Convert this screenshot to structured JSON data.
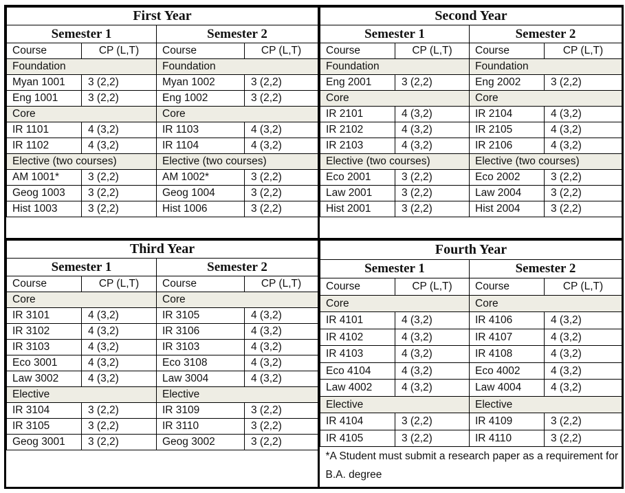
{
  "years": [
    {
      "title": "First Year",
      "semesters": [
        {
          "title": "Semester 1",
          "header": [
            "Course",
            "CP (L,T)"
          ],
          "rows": [
            {
              "section": "Foundation"
            },
            [
              "Myan 1001",
              "3 (2,2)"
            ],
            [
              "Eng 1001",
              "3 (2,2)"
            ],
            {
              "section": "Core"
            },
            [
              "IR 1101",
              "4 (3,2)"
            ],
            [
              "IR 1102",
              "4 (3,2)"
            ],
            {
              "section": "Elective (two courses)"
            },
            [
              "AM 1001*",
              "3 (2,2)"
            ],
            [
              "Geog 1003",
              "3 (2,2)"
            ],
            [
              "Hist 1003",
              "3 (2,2)"
            ]
          ]
        },
        {
          "title": "Semester 2",
          "header": [
            "Course",
            "CP (L,T)"
          ],
          "rows": [
            {
              "section": "Foundation"
            },
            [
              "Myan 1002",
              "3 (2,2)"
            ],
            [
              "Eng 1002",
              "3 (2,2)"
            ],
            {
              "section": "Core"
            },
            [
              "IR 1103",
              "4 (3,2)"
            ],
            [
              "IR 1104",
              "4 (3,2)"
            ],
            {
              "section": "Elective (two courses)"
            },
            [
              "AM 1002*",
              "3 (2,2)"
            ],
            [
              "Geog 1004",
              "3 (2,2)"
            ],
            [
              "Hist 1006",
              "3 (2,2)"
            ]
          ]
        }
      ]
    },
    {
      "title": "Second Year",
      "semesters": [
        {
          "title": "Semester 1",
          "header": [
            "Course",
            "CP (L,T)"
          ],
          "rows": [
            {
              "section": "Foundation"
            },
            [
              "Eng 2001",
              "3 (2,2)"
            ],
            {
              "section": "Core"
            },
            [
              "IR 2101",
              "4 (3,2)"
            ],
            [
              "IR 2102",
              "4 (3,2)"
            ],
            [
              "IR 2103",
              "4 (3,2)"
            ],
            {
              "section": "Elective (two courses)"
            },
            [
              "Eco 2001",
              "3 (2,2)"
            ],
            [
              "Law 2001",
              "3 (2,2)"
            ],
            [
              "Hist 2001",
              "3 (2,2)"
            ]
          ]
        },
        {
          "title": "Semester 2",
          "header": [
            "Course",
            "CP (L,T)"
          ],
          "rows": [
            {
              "section": "Foundation"
            },
            [
              "Eng 2002",
              "3 (2,2)"
            ],
            {
              "section": "Core"
            },
            [
              "IR 2104",
              "4 (3,2)"
            ],
            [
              "IR 2105",
              "4 (3,2)"
            ],
            [
              "IR 2106",
              "4 (3,2)"
            ],
            {
              "section": "Elective (two courses)"
            },
            [
              "Eco 2002",
              "3 (2,2)"
            ],
            [
              "Law 2004",
              "3 (2,2)"
            ],
            [
              "Hist 2004",
              "3 (2,2)"
            ]
          ]
        }
      ]
    },
    {
      "title": "Third Year",
      "semesters": [
        {
          "title": "Semester 1",
          "header": [
            "Course",
            "CP (L,T)"
          ],
          "rows": [
            {
              "section": "Core"
            },
            [
              "IR 3101",
              "4 (3,2)"
            ],
            [
              "IR 3102",
              "4 (3,2)"
            ],
            [
              "IR 3103",
              "4 (3,2)"
            ],
            [
              "Eco 3001",
              "4 (3,2)"
            ],
            [
              "Law 3002",
              "4 (3,2)"
            ],
            {
              "section": "Elective"
            },
            [
              "IR 3104",
              "3 (2,2)"
            ],
            [
              "IR 3105",
              "3 (2,2)"
            ],
            [
              "Geog 3001",
              "3 (2,2)"
            ]
          ]
        },
        {
          "title": "Semester 2",
          "header": [
            "Course",
            "CP (L,T)"
          ],
          "rows": [
            {
              "section": "Core"
            },
            [
              "IR 3105",
              "4 (3,2)"
            ],
            [
              "IR 3106",
              "4 (3,2)"
            ],
            [
              "IR 3103",
              "4 (3,2)"
            ],
            [
              "Eco 3108",
              "4 (3,2)"
            ],
            [
              "Law 3004",
              "4 (3,2)"
            ],
            {
              "section": "Elective"
            },
            [
              "IR 3109",
              "3 (2,2)"
            ],
            [
              "IR 3110",
              "3 (2,2)"
            ],
            [
              "Geog 3002",
              "3 (2,2)"
            ]
          ]
        }
      ]
    },
    {
      "title": "Fourth Year",
      "semesters": [
        {
          "title": "Semester 1",
          "header": [
            "Course",
            "CP (L,T)"
          ],
          "rows": [
            {
              "section": "Core"
            },
            [
              "IR 4101",
              "4 (3,2)"
            ],
            [
              "IR 4102",
              "4 (3,2)"
            ],
            [
              "IR 4103",
              "4 (3,2)"
            ],
            [
              "Eco 4104",
              "4 (3,2)"
            ],
            [
              "Law 4002",
              "4 (3,2)"
            ],
            {
              "section": "Elective"
            },
            [
              "IR 4104",
              "3 (2,2)"
            ],
            [
              "IR 4105",
              "3 (2,2)"
            ]
          ]
        },
        {
          "title": "Semester 2",
          "header": [
            "Course",
            "CP (L,T)"
          ],
          "rows": [
            {
              "section": "Core"
            },
            [
              "IR 4106",
              "4 (3,2)"
            ],
            [
              "IR 4107",
              "4 (3,2)"
            ],
            [
              "IR 4108",
              "4 (3,2)"
            ],
            [
              "Eco 4002",
              "4 (3,2)"
            ],
            [
              "Law 4004",
              "4 (3,2)"
            ],
            {
              "section": "Elective"
            },
            [
              "IR 4109",
              "3 (2,2)"
            ],
            [
              "IR 4110",
              "3 (2,2)"
            ]
          ]
        }
      ],
      "note": "*A Student must submit a research paper as a requirement for B.A. degree"
    }
  ]
}
